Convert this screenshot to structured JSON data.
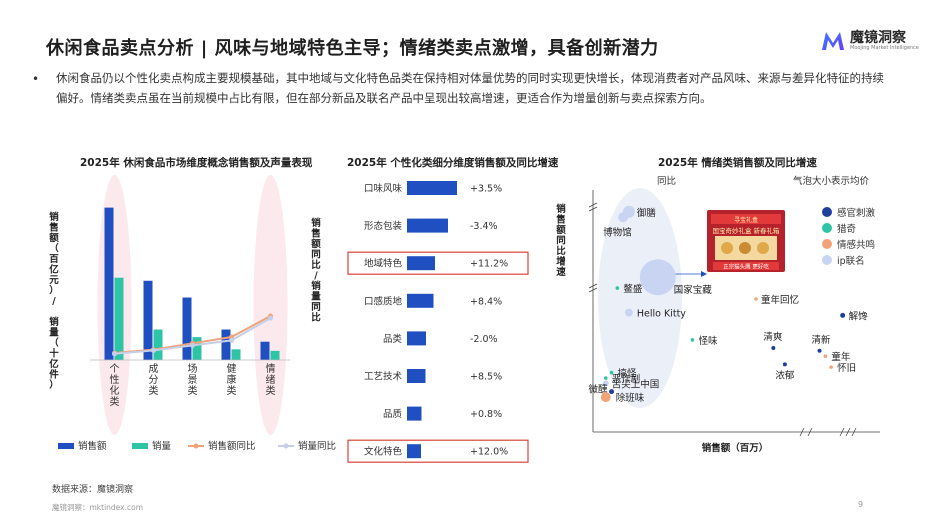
{
  "header": {
    "title": "休闲食品卖点分析 | 风味与地域特色主导；情绪类卖点激增，具备创新潜力",
    "brand_name": "魔镜洞察",
    "brand_tagline": "Moojing Market Intelligence"
  },
  "summary": {
    "bullet": "•",
    "text": "休闲食品仍以个性化卖点构成主要规模基础，其中地域与文化特色品类在保持相对体量优势的同时实现更快增长，体现消费者对产品风味、来源与差异化特征的持续偏好。情绪类卖点虽在当前规模中占比有限，但在部分新品及联名产品中呈现出较高增速，更适合作为增量创新与卖点探索方向。"
  },
  "chart_data": [
    {
      "type": "bar",
      "title": "2025年 休闲食品市场维度概念销售额及声量表现",
      "ylabel_left": "销售额（百亿元）/ 销量（十亿件）",
      "ylabel_right": "销售额同比/销量同比",
      "categories": [
        "个性化类",
        "成分类",
        "场景类",
        "健康类",
        "情绪类"
      ],
      "series": [
        {
          "name": "销售额",
          "kind": "bar",
          "color": "#1f4fc1",
          "values": [
            10.0,
            5.2,
            4.1,
            2.0,
            1.2
          ]
        },
        {
          "name": "销量",
          "kind": "bar",
          "color": "#2ec4a6",
          "values": [
            5.4,
            2.0,
            1.5,
            0.7,
            0.6
          ]
        },
        {
          "name": "销售额同比",
          "kind": "line",
          "color": "#f0a47a",
          "values": [
            0.12,
            0.2,
            0.35,
            0.5,
            1.0
          ]
        },
        {
          "name": "销量同比",
          "kind": "line",
          "color": "#c6cfe8",
          "values": [
            0.1,
            0.18,
            0.3,
            0.42,
            0.95
          ]
        }
      ],
      "highlighted_categories": [
        "个性化类",
        "情绪类"
      ]
    },
    {
      "type": "bar",
      "orientation": "horizontal",
      "title": "2025年 个性化类细分维度销售额及同比增速",
      "categories": [
        "口味风味",
        "形态包装",
        "地域特色",
        "口感质地",
        "品类",
        "工艺技术",
        "品质",
        "文化特色"
      ],
      "values": [
        100,
        82,
        56,
        53,
        38,
        37,
        29,
        28
      ],
      "growth_labels": [
        "+3.5%",
        "-3.4%",
        "+11.2%",
        "+8.4%",
        "-2.0%",
        "+8.5%",
        "+0.8%",
        "+12.0%"
      ],
      "highlighted": [
        "地域特色",
        "文化特色"
      ],
      "color": "#1f4fc1"
    },
    {
      "type": "scatter",
      "title": "2025年 情绪类销售额及同比增速",
      "xlabel": "销售额（百万）",
      "ylabel": "销售额同比增速",
      "y_top_label": "同比",
      "size_note": "气泡大小表示均价",
      "legend": [
        {
          "name": "感官刺激",
          "color": "#1f3f9c"
        },
        {
          "name": "猎奇",
          "color": "#2ec4a6"
        },
        {
          "name": "情感共鸣",
          "color": "#f0a47a"
        },
        {
          "name": "ip联名",
          "color": "#c9d4f2"
        }
      ],
      "points": [
        {
          "label": "御膳",
          "group": "ip联名",
          "x": 5,
          "y": 9.2,
          "size": 6
        },
        {
          "label": "博物馆",
          "group": "ip联名",
          "x": 4,
          "y": 9.0,
          "size": 5
        },
        {
          "label": "国家宝藏",
          "group": "ip联名",
          "x": 10,
          "y": 6.8,
          "size": 18
        },
        {
          "label": "鳌盛",
          "group": "猎奇",
          "x": 3,
          "y": 6.4,
          "size": 1.5
        },
        {
          "label": "Hello Kitty",
          "group": "ip联名",
          "x": 5,
          "y": 5.5,
          "size": 4
        },
        {
          "label": "童年回忆",
          "group": "情感共鸣",
          "x": 27,
          "y": 6.0,
          "size": 1.5
        },
        {
          "label": "解馋",
          "group": "感官刺激",
          "x": 42,
          "y": 5.4,
          "size": 2.5
        },
        {
          "label": "怪味",
          "group": "猎奇",
          "x": 16,
          "y": 4.5,
          "size": 1.8
        },
        {
          "label": "清爽",
          "group": "感官刺激",
          "x": 30,
          "y": 4.2,
          "size": 2
        },
        {
          "label": "清新",
          "group": "感官刺激",
          "x": 38,
          "y": 4.1,
          "size": 2
        },
        {
          "label": "童年",
          "group": "情感共鸣",
          "x": 39,
          "y": 3.9,
          "size": 1.5
        },
        {
          "label": "浓郁",
          "group": "感官刺激",
          "x": 32,
          "y": 3.6,
          "size": 2
        },
        {
          "label": "怀旧",
          "group": "情感共鸣",
          "x": 40,
          "y": 3.5,
          "size": 1.5
        },
        {
          "label": "搞怪",
          "group": "猎奇",
          "x": 2,
          "y": 3.3,
          "size": 1.8
        },
        {
          "label": "恶作剧",
          "group": "猎奇",
          "x": 1,
          "y": 3.1,
          "size": 1.8
        },
        {
          "label": "舌尖上中国",
          "group": "ip联名",
          "x": 1,
          "y": 2.9,
          "size": 3
        },
        {
          "label": "微醺",
          "group": "感官刺激",
          "x": 2,
          "y": 2.6,
          "size": 2.5
        },
        {
          "label": "除班味",
          "group": "情感共鸣",
          "x": 1,
          "y": 2.4,
          "size": 5
        }
      ],
      "inset_image_text": [
        "寻宝礼盒",
        "国宝奇妙礼盒",
        "新春礼箱",
        "正宗猫头鹰 更好吃"
      ]
    }
  ],
  "footer": {
    "source": "数据来源：魔镜洞察",
    "site": "魔镜洞察：mktindex.com",
    "page": "9"
  }
}
